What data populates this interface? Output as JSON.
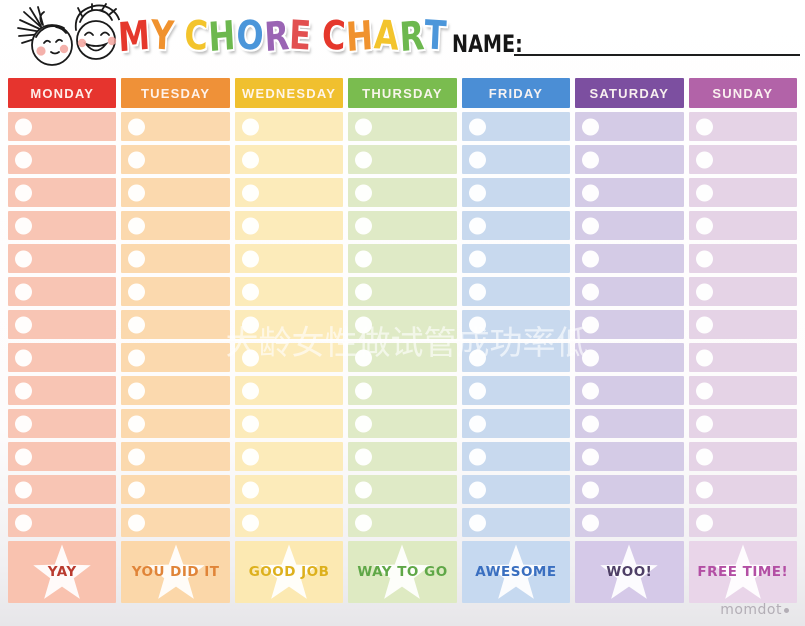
{
  "header": {
    "title_letters": [
      {
        "ch": "M",
        "color": "#e5382c"
      },
      {
        "ch": "Y",
        "color": "#f0922e"
      },
      {
        "ch": " ",
        "color": ""
      },
      {
        "ch": "C",
        "color": "#f3c42c"
      },
      {
        "ch": "H",
        "color": "#6db84f"
      },
      {
        "ch": "O",
        "color": "#4b96da"
      },
      {
        "ch": "R",
        "color": "#9a64b4"
      },
      {
        "ch": "E",
        "color": "#e25050"
      },
      {
        "ch": " ",
        "color": ""
      },
      {
        "ch": "C",
        "color": "#e5382c"
      },
      {
        "ch": "H",
        "color": "#f0922e"
      },
      {
        "ch": "A",
        "color": "#f3c42c"
      },
      {
        "ch": "R",
        "color": "#6db84f"
      },
      {
        "ch": "T",
        "color": "#4b96da"
      }
    ],
    "name_label": "NAME:",
    "kids_illustration": "two-kids-faces"
  },
  "table": {
    "row_count": 13,
    "days": [
      {
        "label": "MONDAY",
        "header_color": "#e6342e",
        "row_color": "#f8c5b4",
        "footer_color": "#f9c2af",
        "award_label": "YAY",
        "award_text_color": "#b93a2e"
      },
      {
        "label": "TUESDAY",
        "header_color": "#ef9138",
        "row_color": "#fbd9ae",
        "footer_color": "#fbd7a9",
        "award_label": "YOU DID IT",
        "award_text_color": "#e08438"
      },
      {
        "label": "WEDNESDAY",
        "header_color": "#f0c02f",
        "row_color": "#fcebba",
        "footer_color": "#fce9b2",
        "award_label": "GOOD JOB",
        "award_text_color": "#ddb01c"
      },
      {
        "label": "THURSDAY",
        "header_color": "#7abc4f",
        "row_color": "#dfeac6",
        "footer_color": "#deeac2",
        "award_label": "WAY TO GO",
        "award_text_color": "#5fa747"
      },
      {
        "label": "FRIDAY",
        "header_color": "#4b8ed5",
        "row_color": "#c8d9ee",
        "footer_color": "#c6d9f0",
        "award_label": "AWESOME",
        "award_text_color": "#3a6fc0"
      },
      {
        "label": "SATURDAY",
        "header_color": "#7c4fa0",
        "row_color": "#d4cbe6",
        "footer_color": "#d5c9e8",
        "award_label": "WOO!",
        "award_text_color": "#4e3f66"
      },
      {
        "label": "SUNDAY",
        "header_color": "#b263a8",
        "row_color": "#e5d3e6",
        "footer_color": "#e9d5e9",
        "award_label": "FREE TIME!",
        "award_text_color": "#b34fa4"
      }
    ]
  },
  "watermark": {
    "text": "大龄女性做试管成功率低",
    "color": "rgba(255,255,255,0.62)"
  },
  "brand": {
    "text": "momdot",
    "color": "#b3aeb6"
  }
}
